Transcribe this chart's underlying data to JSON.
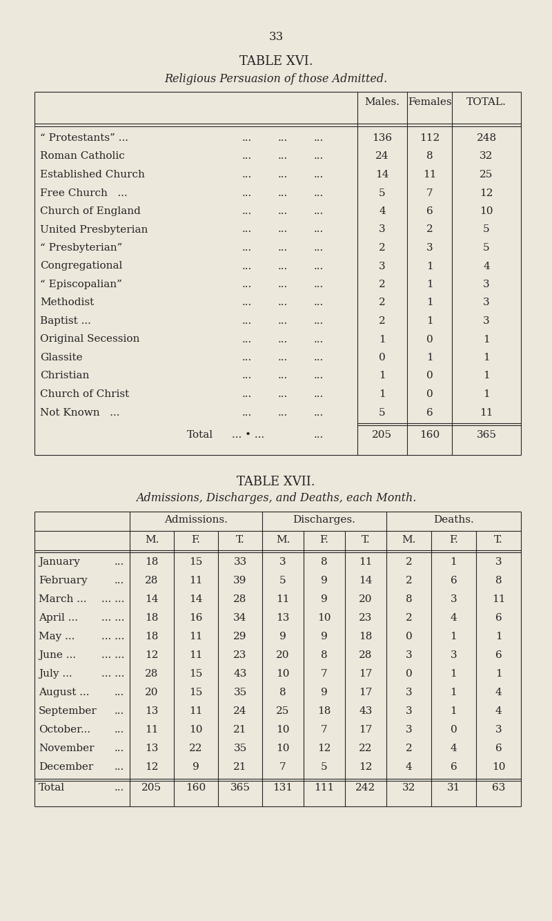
{
  "bg_color": "#ede8dc",
  "text_color": "#222222",
  "page_number": "33",
  "table16": {
    "title": "TABLE XVI.",
    "subtitle": "Religious Persuasion of those Admitted.",
    "col_headers": [
      "Males.",
      "Females",
      "TOTAL."
    ],
    "rows": [
      [
        "“ Protestants” ...",
        "...",
        "...",
        "...",
        "136",
        "112",
        "248"
      ],
      [
        "Roman Catholic",
        "...",
        "...",
        "...",
        "24",
        "8",
        "32"
      ],
      [
        "Established Church",
        "...",
        "...",
        "...",
        "14",
        "11",
        "25"
      ],
      [
        "Free Church   ...",
        "...",
        "...",
        "...",
        "5",
        "7",
        "12"
      ],
      [
        "Church of England",
        "...",
        "...",
        "...",
        "4",
        "6",
        "10"
      ],
      [
        "United Presbyterian",
        "...",
        "...",
        "...",
        "3",
        "2",
        "5"
      ],
      [
        "“ Presbyterian”",
        "...",
        "...",
        "...",
        "2",
        "3",
        "5"
      ],
      [
        "Congregational",
        "...",
        "...",
        "...",
        "3",
        "1",
        "4"
      ],
      [
        "“ Episcopalian”",
        "...",
        "...",
        "...",
        "2",
        "1",
        "3"
      ],
      [
        "Methodist",
        "...",
        "...",
        "...",
        "2",
        "1",
        "3"
      ],
      [
        "Baptist ...",
        "...",
        "...",
        "...",
        "2",
        "1",
        "3"
      ],
      [
        "Original Secession",
        "...",
        "...",
        "...",
        "1",
        "0",
        "1"
      ],
      [
        "Glassite",
        "...",
        "...",
        "...",
        "0",
        "1",
        "1"
      ],
      [
        "Christian",
        "...",
        "...",
        "...",
        "1",
        "0",
        "1"
      ],
      [
        "Church of Christ",
        "...",
        "...",
        "...",
        "1",
        "0",
        "1"
      ],
      [
        "Not Known   ...",
        "...",
        "...",
        "...",
        "5",
        "6",
        "11"
      ]
    ],
    "total_label": "Total",
    "total_dots": "... • ...",
    "total_dots2": "...",
    "total_vals": [
      "205",
      "160",
      "365"
    ]
  },
  "table17": {
    "title": "TABLE XVII.",
    "subtitle": "Admissions, Discharges, and Deaths, each Month.",
    "group_headers": [
      "Admissions.",
      "Discharges.",
      "Deaths."
    ],
    "col_headers": [
      "M.",
      "F.",
      "T.",
      "M.",
      "F.",
      "T.",
      "M.",
      "F.",
      "T."
    ],
    "months": [
      [
        "January",
        "..."
      ],
      [
        "February",
        "..."
      ],
      [
        "March ...",
        "..."
      ],
      [
        "April ...",
        "..."
      ],
      [
        "May ...",
        "..."
      ],
      [
        "June ...",
        "..."
      ],
      [
        "July ...",
        "..."
      ],
      [
        "August ...",
        "..."
      ],
      [
        "September",
        "..."
      ],
      [
        "October...",
        "..."
      ],
      [
        "November",
        "..."
      ],
      [
        "December",
        "..."
      ]
    ],
    "data": [
      [
        18,
        15,
        33,
        3,
        8,
        11,
        2,
        1,
        3
      ],
      [
        28,
        11,
        39,
        5,
        9,
        14,
        2,
        6,
        8
      ],
      [
        14,
        14,
        28,
        11,
        9,
        20,
        8,
        3,
        11
      ],
      [
        18,
        16,
        34,
        13,
        10,
        23,
        2,
        4,
        6
      ],
      [
        18,
        11,
        29,
        9,
        9,
        18,
        0,
        1,
        1
      ],
      [
        12,
        11,
        23,
        20,
        8,
        28,
        3,
        3,
        6
      ],
      [
        28,
        15,
        43,
        10,
        7,
        17,
        0,
        1,
        1
      ],
      [
        20,
        15,
        35,
        8,
        9,
        17,
        3,
        1,
        4
      ],
      [
        13,
        11,
        24,
        25,
        18,
        43,
        3,
        1,
        4
      ],
      [
        11,
        10,
        21,
        10,
        7,
        17,
        3,
        0,
        3
      ],
      [
        13,
        22,
        35,
        10,
        12,
        22,
        2,
        4,
        6
      ],
      [
        12,
        9,
        21,
        7,
        5,
        12,
        4,
        6,
        10
      ]
    ],
    "total_vals": [
      205,
      160,
      365,
      131,
      111,
      242,
      32,
      31,
      63
    ]
  }
}
